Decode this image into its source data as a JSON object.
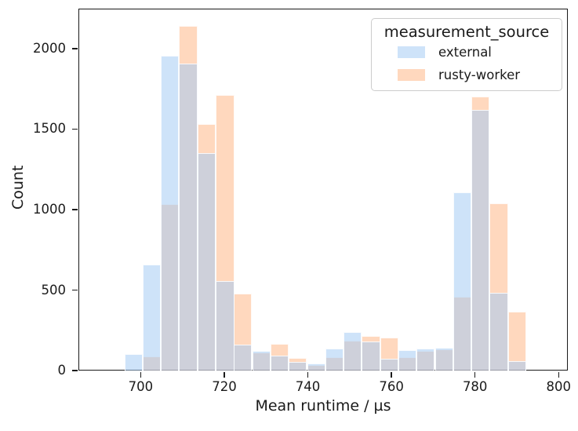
{
  "figure": {
    "background": "#ffffff",
    "text_color": "#1a1a1a",
    "spine_color": "#1a1a1a"
  },
  "legend": {
    "title": "measurement_source",
    "position": "upper right",
    "entries": [
      {
        "label": "external",
        "swatch_color": "rgba(161,201,244,0.52)"
      },
      {
        "label": "rusty-worker",
        "swatch_color": "rgba(255,180,130,0.52)"
      }
    ]
  },
  "chart_data": {
    "type": "bar",
    "subtype": "overlapping-histogram",
    "title": "",
    "xlabel": "Mean runtime / µs",
    "ylabel": "Count",
    "xlim": [
      685.1,
      802.2
    ],
    "ylim": [
      0,
      2248
    ],
    "x_ticks": [
      700,
      720,
      740,
      760,
      780,
      800
    ],
    "y_ticks": [
      0,
      500,
      1000,
      1500,
      2000
    ],
    "grid": false,
    "legend_title": "measurement_source",
    "legend_position": "upper right",
    "bin_width": 4.37,
    "bin_starts": [
      696.1,
      700.5,
      704.8,
      709.2,
      713.6,
      718.0,
      722.3,
      726.7,
      731.1,
      735.4,
      739.8,
      744.2,
      748.5,
      752.9,
      757.3,
      761.7,
      766.0,
      770.4,
      774.8,
      779.1,
      783.5,
      787.9
    ],
    "series": [
      {
        "name": "external",
        "color": "rgba(161,201,244,0.52)",
        "values": [
          105,
          660,
          1955,
          1905,
          1350,
          555,
          160,
          120,
          94,
          52,
          45,
          138,
          237,
          180,
          75,
          128,
          135,
          140,
          1105,
          1620,
          485,
          58
        ]
      },
      {
        "name": "rusty-worker",
        "color": "rgba(255,180,130,0.52)",
        "values": [
          0,
          88,
          1035,
          2140,
          1530,
          1710,
          480,
          112,
          167,
          80,
          32,
          85,
          185,
          215,
          203,
          82,
          120,
          132,
          460,
          1700,
          1040,
          365
        ]
      }
    ],
    "draw_order": [
      "rusty-worker",
      "external"
    ]
  }
}
